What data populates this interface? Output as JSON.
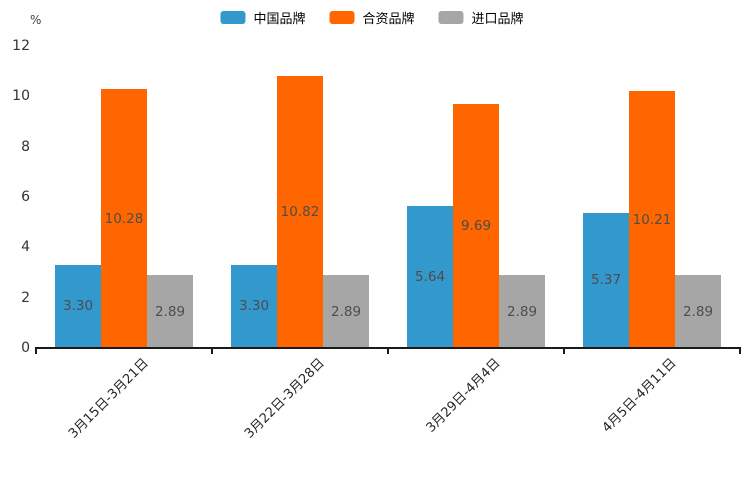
{
  "chart_data": {
    "type": "bar",
    "title": "",
    "unit_label": "%",
    "xlabel": "",
    "ylabel": "%",
    "ylim": [
      0,
      12
    ],
    "yticks": [
      0,
      2,
      4,
      6,
      8,
      10,
      12
    ],
    "grid": false,
    "legend_position": "top-center",
    "categories": [
      "3月15日-3月21日",
      "3月22日-3月28日",
      "3月29日-4月4日",
      "4月5日-4月11日"
    ],
    "series": [
      {
        "name": "中国品牌",
        "color": "#3398CC",
        "values": [
          3.3,
          3.3,
          5.64,
          5.37
        ],
        "labels": [
          "3.30",
          "3.30",
          "5.64",
          "5.37"
        ]
      },
      {
        "name": "合资品牌",
        "color": "#FF6600",
        "values": [
          10.28,
          10.82,
          9.69,
          10.21
        ],
        "labels": [
          "10.28",
          "10.82",
          "9.69",
          "10.21"
        ]
      },
      {
        "name": "进口品牌",
        "color": "#A6A6A6",
        "values": [
          2.89,
          2.89,
          2.89,
          2.89
        ],
        "labels": [
          "2.89",
          "2.89",
          "2.89",
          "2.89"
        ]
      }
    ],
    "colors": {
      "axis": "#1a1a1a",
      "value_label": "#4d4d4d",
      "tick_label": "#333333"
    }
  }
}
